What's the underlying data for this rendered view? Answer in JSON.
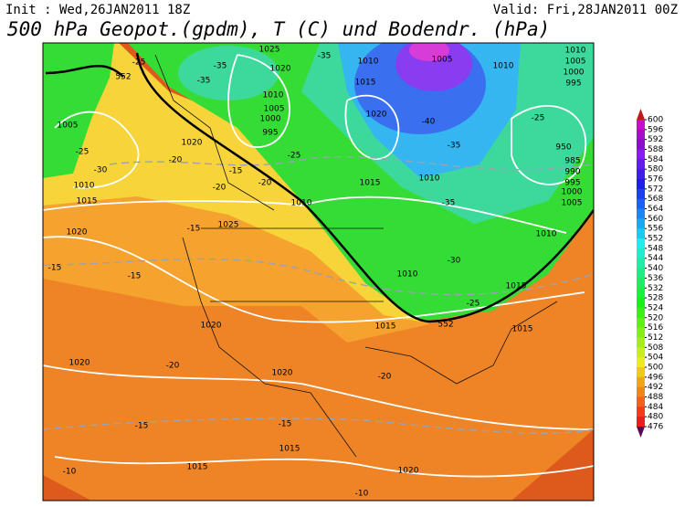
{
  "header": {
    "init": "Init : Wed,26JAN2011 18Z",
    "valid": "Valid: Fri,28JAN2011 00Z",
    "title": "500 hPa Geopot.(gpdm), T (C) und Bodendr. (hPa)"
  },
  "colorbar": {
    "ticks": [
      600,
      596,
      592,
      588,
      584,
      580,
      576,
      572,
      568,
      564,
      560,
      556,
      552,
      548,
      544,
      540,
      536,
      532,
      528,
      524,
      520,
      516,
      512,
      508,
      504,
      500,
      496,
      492,
      488,
      484,
      480,
      476
    ]
  },
  "map_labels": [
    "-25",
    "552",
    "-35",
    "-35",
    "1025",
    "1020",
    "-35",
    "1010",
    "1005",
    "1010",
    "1010",
    "1005",
    "1000",
    "995",
    "1015",
    "1010",
    "1005",
    "1000",
    "995",
    "1020",
    "-40",
    "-25",
    "950",
    "985",
    "990",
    "995",
    "1000",
    "1005",
    "1005",
    "-25",
    "-30",
    "1010",
    "1015",
    "1020",
    "-20",
    "-25",
    "-35",
    "1010",
    "1015",
    "-35",
    "-15",
    "-20",
    "-20",
    "1010",
    "1025",
    "-15",
    "1020",
    "-15",
    "-15",
    "1010",
    "-30",
    "1010",
    "1015",
    "-25",
    "1015",
    "552",
    "1015",
    "1020",
    "1020",
    "-20",
    "1020",
    "-20",
    "-15",
    "-15",
    "1015",
    "1015",
    "-10",
    "1020",
    "-10"
  ]
}
